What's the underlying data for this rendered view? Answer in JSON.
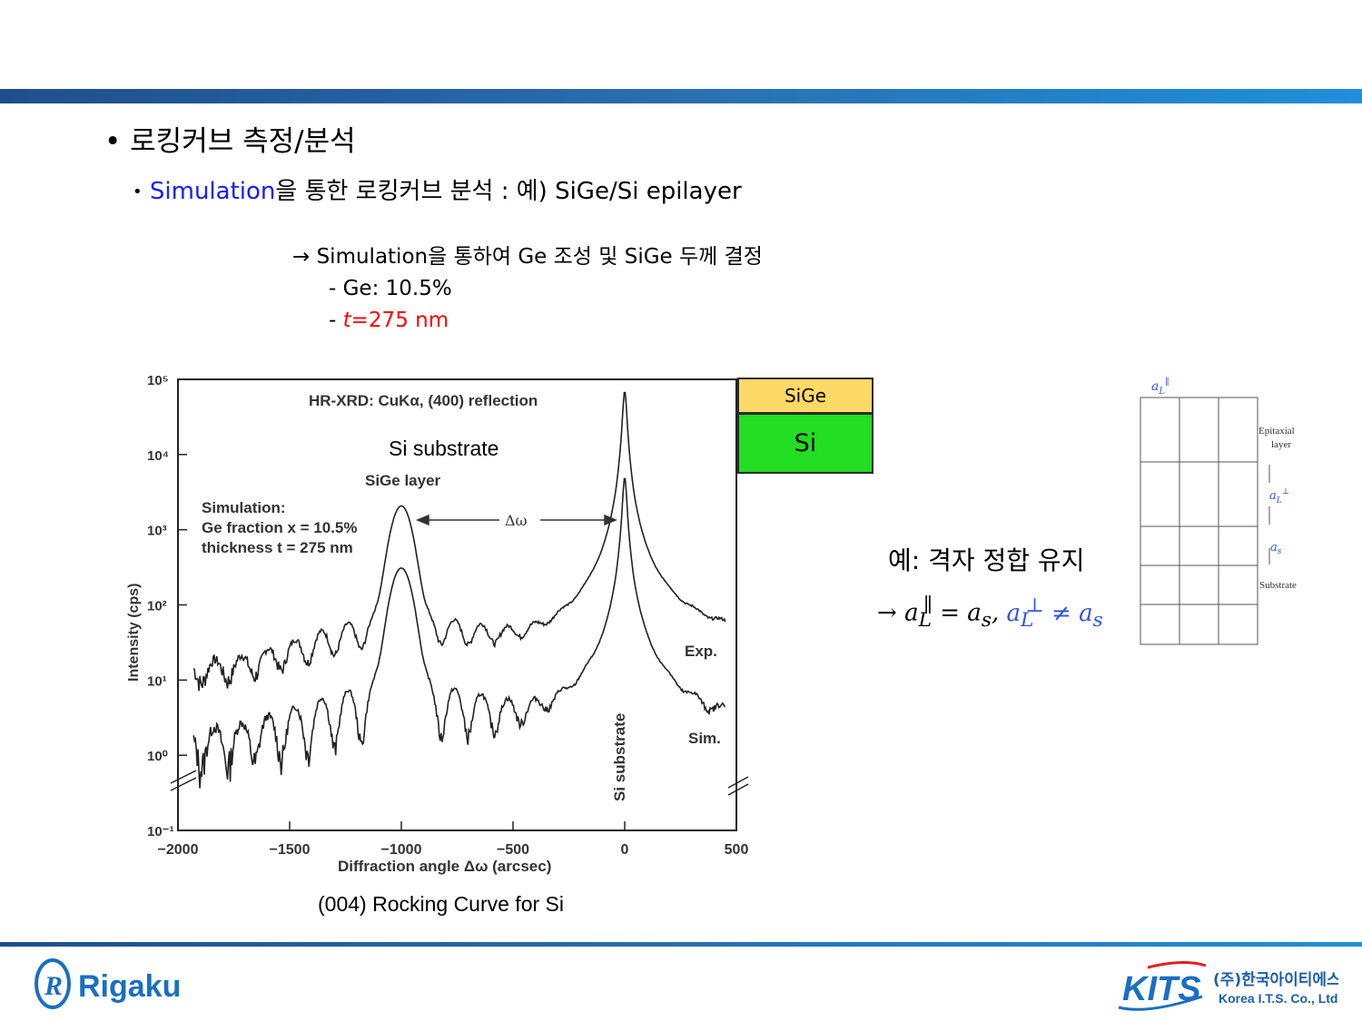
{
  "heading": {
    "bullet1": "로킹커브 측정/분석",
    "bullet2_blue": "Simulation",
    "bullet2_rest": "을 통한 로킹커브 분석 : 예) SiGe/Si epilayer"
  },
  "notes": {
    "arrow_line": "→ Simulation을 통하여 Ge 조성 및 SiGe 두께 결정",
    "item1": "- Ge: 10.5%",
    "item2_dash": "- ",
    "item2_italic": "t",
    "item2_rest": "=275 nm"
  },
  "chart_data": {
    "type": "line",
    "title": "HR-XRD: CuKα, (400) reflection",
    "xlabel": "Diffraction angle Δω (arcsec)",
    "ylabel": "Intensity (cps)",
    "xlim": [
      -2000,
      500
    ],
    "ylim_log10": [
      -1,
      5
    ],
    "log_y": true,
    "x_ticks": [
      "−2000",
      "−1500",
      "−1000",
      "−500",
      "0",
      "500"
    ],
    "y_ticks": [
      "10⁻¹",
      "10⁰",
      "10¹",
      "10²",
      "10³",
      "10⁴",
      "10⁵"
    ],
    "series": [
      {
        "name": "Exp.",
        "peaks": [
          {
            "x": -1000,
            "y": 2000
          },
          {
            "x": 0,
            "y": 70000
          }
        ]
      },
      {
        "name": "Sim.",
        "peaks": [
          {
            "x": -1000,
            "y": 300
          },
          {
            "x": 0,
            "y": 5000
          }
        ]
      }
    ],
    "annotations": {
      "si_substrate_top": "Si substrate",
      "sige_layer": "SiGe layer",
      "simulation_title": "Simulation:",
      "ge_fraction": "Ge fraction x = 10.5%",
      "thickness": "thickness t = 275 nm",
      "delta_omega": "Δω",
      "exp_label": "Exp.",
      "sim_label": "Sim.",
      "si_substrate_vertical": "Si substrate"
    },
    "grid": false
  },
  "caption": "(004) Rocking Curve for Si",
  "layers": {
    "top": "SiGe",
    "bottom": "Si"
  },
  "example": {
    "text": "예: 격자 정합 유지"
  },
  "lattice_labels": {
    "epitaxial": "Epitaxial",
    "layer": "layer",
    "substrate": "Substrate"
  },
  "logos": {
    "left": "Rigaku",
    "right_brand": "KITS",
    "right_korean": "(주)한국아이티에스",
    "right_english": "Korea I.T.S. Co., Ltd."
  }
}
